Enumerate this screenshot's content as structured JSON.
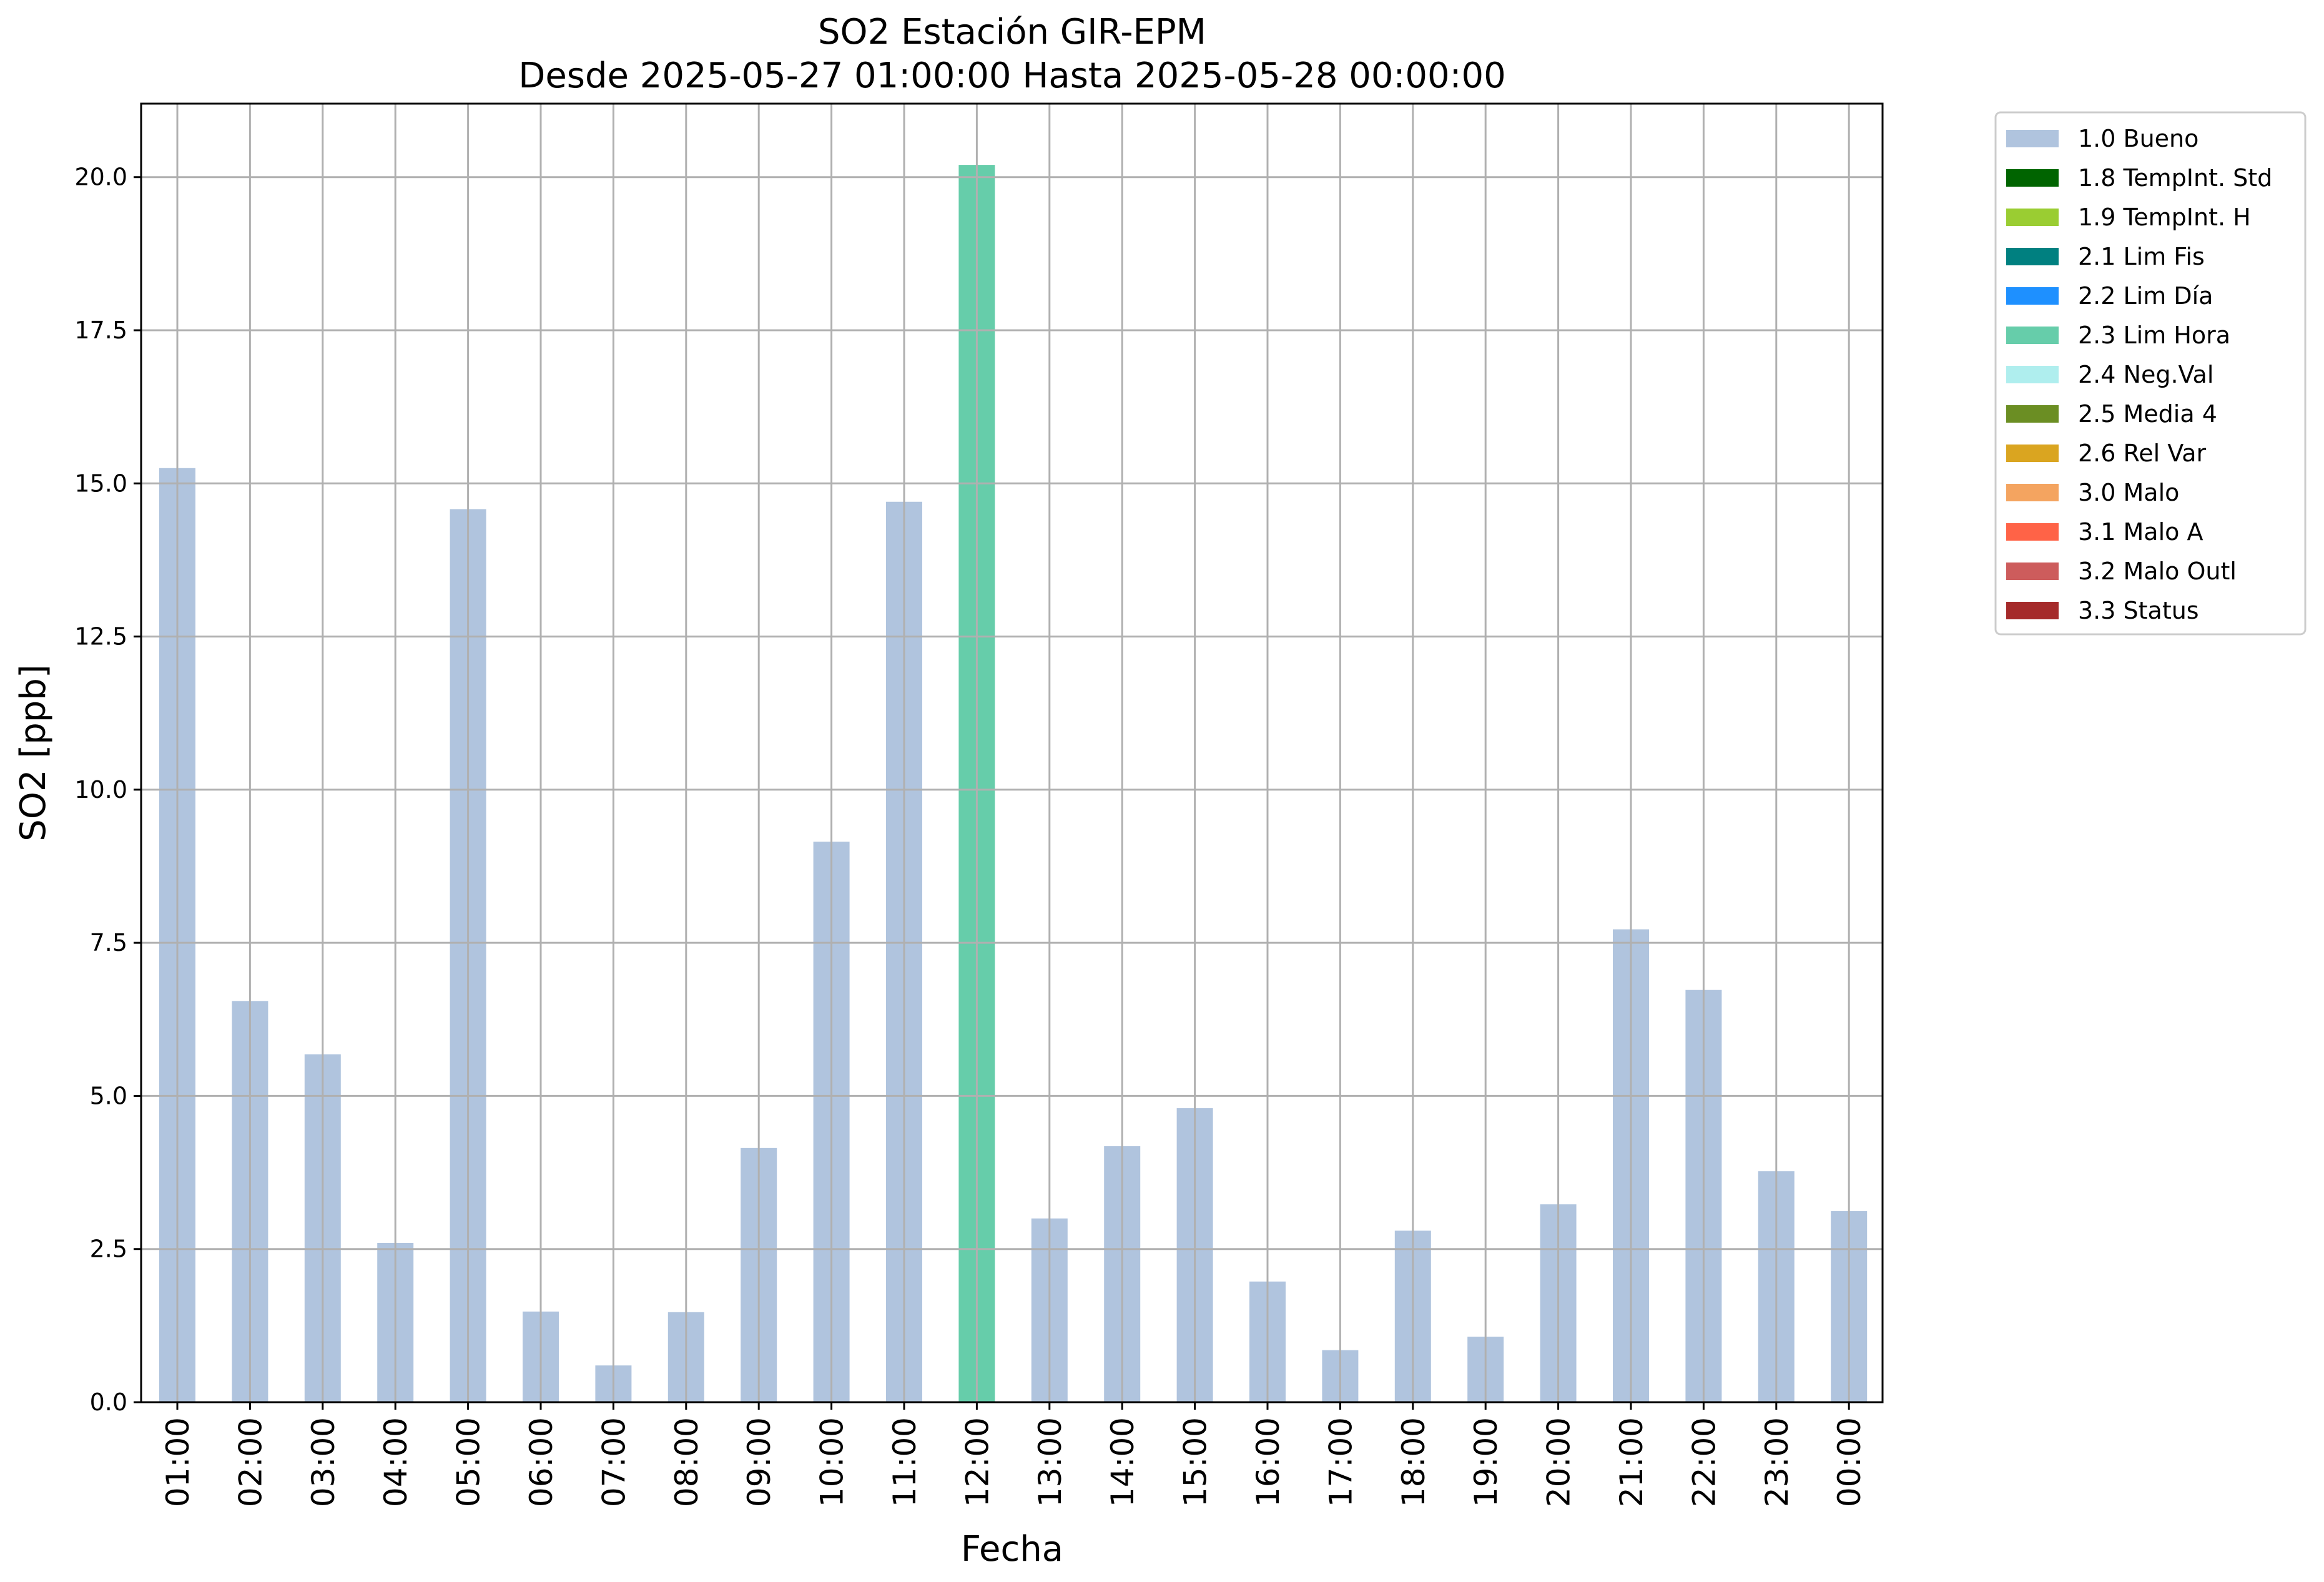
{
  "chart_data": {
    "type": "bar",
    "title": "SO2 Estación GIR-EPM",
    "subtitle": "Desde 2025-05-27 01:00:00 Hasta 2025-05-28 00:00:00",
    "xlabel": "Fecha",
    "ylabel": "SO2 [ppb]",
    "ylim": [
      0,
      21.2
    ],
    "yticks": [
      "0.0",
      "2.5",
      "5.0",
      "7.5",
      "10.0",
      "12.5",
      "15.0",
      "17.5",
      "20.0"
    ],
    "grid": true,
    "legend_position": "outside-top-right",
    "categories": [
      "01:00",
      "02:00",
      "03:00",
      "04:00",
      "05:00",
      "06:00",
      "07:00",
      "08:00",
      "09:00",
      "10:00",
      "11:00",
      "12:00",
      "13:00",
      "14:00",
      "15:00",
      "16:00",
      "17:00",
      "18:00",
      "19:00",
      "20:00",
      "21:00",
      "22:00",
      "23:00",
      "00:00"
    ],
    "values": [
      15.25,
      6.55,
      5.68,
      2.6,
      14.58,
      1.48,
      0.6,
      1.47,
      4.15,
      9.15,
      14.7,
      20.2,
      3.0,
      4.18,
      4.8,
      1.97,
      0.85,
      2.8,
      1.07,
      3.23,
      7.72,
      6.73,
      3.77,
      3.12
    ],
    "flags": [
      "1.0 Bueno",
      "1.0 Bueno",
      "1.0 Bueno",
      "1.0 Bueno",
      "1.0 Bueno",
      "1.0 Bueno",
      "1.0 Bueno",
      "1.0 Bueno",
      "1.0 Bueno",
      "1.0 Bueno",
      "1.0 Bueno",
      "2.3 Lim Hora",
      "1.0 Bueno",
      "1.0 Bueno",
      "1.0 Bueno",
      "1.0 Bueno",
      "1.0 Bueno",
      "1.0 Bueno",
      "1.0 Bueno",
      "1.0 Bueno",
      "1.0 Bueno",
      "1.0 Bueno",
      "1.0 Bueno",
      "1.0 Bueno"
    ],
    "legend": [
      {
        "label": "1.0 Bueno",
        "color": "#b0c4de"
      },
      {
        "label": "1.8 TempInt. Std",
        "color": "#006400"
      },
      {
        "label": "1.9 TempInt. H",
        "color": "#9acd32"
      },
      {
        "label": "2.1 Lim Fis",
        "color": "#008080"
      },
      {
        "label": "2.2 Lim Día",
        "color": "#1e90ff"
      },
      {
        "label": "2.3 Lim Hora",
        "color": "#66cdaa"
      },
      {
        "label": "2.4 Neg.Val",
        "color": "#afeeee"
      },
      {
        "label": "2.5 Media 4",
        "color": "#6b8e23"
      },
      {
        "label": "2.6 Rel Var",
        "color": "#daa520"
      },
      {
        "label": "3.0 Malo",
        "color": "#f4a460"
      },
      {
        "label": "3.1 Malo A",
        "color": "#ff6347"
      },
      {
        "label": "3.2 Malo Outl",
        "color": "#cd5c5c"
      },
      {
        "label": "3.3 Status",
        "color": "#a52a2a"
      }
    ]
  }
}
